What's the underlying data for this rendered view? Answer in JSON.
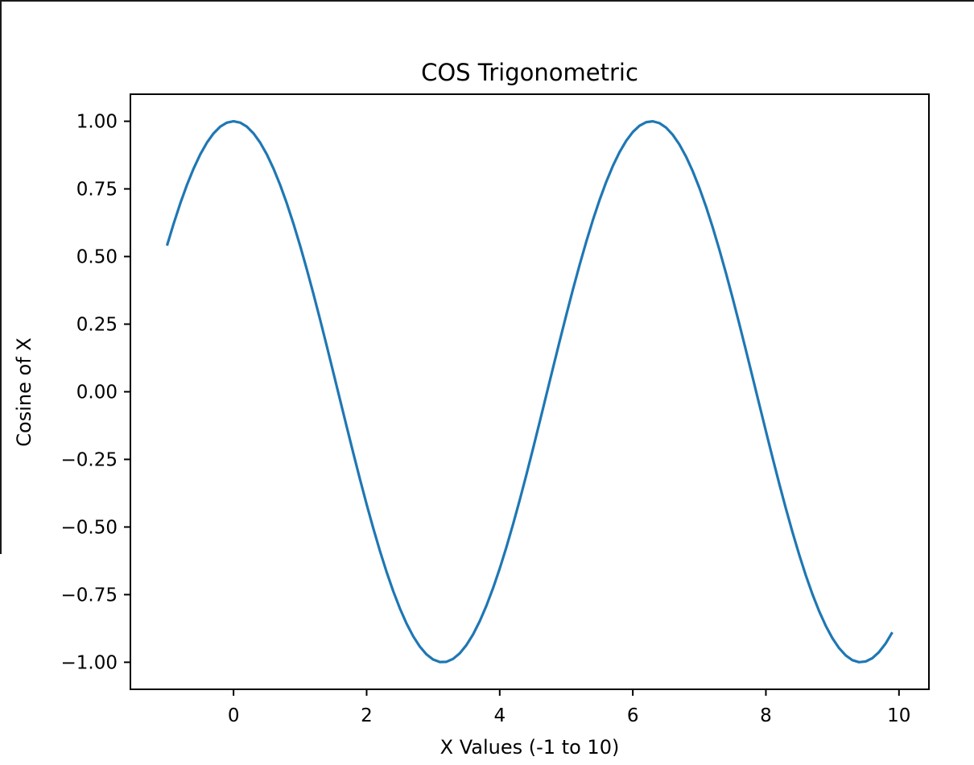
{
  "chart_data": {
    "type": "line",
    "title": "COS Trigonometric",
    "xlabel": "X Values (-1 to 10)",
    "ylabel": "Cosine of X",
    "xlim": [
      -1.55,
      10.45
    ],
    "ylim": [
      -1.1,
      1.1
    ],
    "grid": false,
    "function": "cos(x)",
    "x_range": [
      -1.0,
      9.9
    ],
    "x_step": 0.1,
    "xticks": [
      0,
      2,
      4,
      6,
      8,
      10
    ],
    "xtick_labels": [
      "0",
      "2",
      "4",
      "6",
      "8",
      "10"
    ],
    "yticks": [
      1.0,
      0.75,
      0.5,
      0.25,
      0.0,
      -0.25,
      -0.5,
      -0.75,
      -1.0
    ],
    "ytick_labels": [
      "1.00",
      "0.75",
      "0.50",
      "0.25",
      "0.00",
      "−0.25",
      "−0.50",
      "−0.75",
      "−1.00"
    ],
    "series": [
      {
        "color": "#1f77b4"
      }
    ]
  }
}
